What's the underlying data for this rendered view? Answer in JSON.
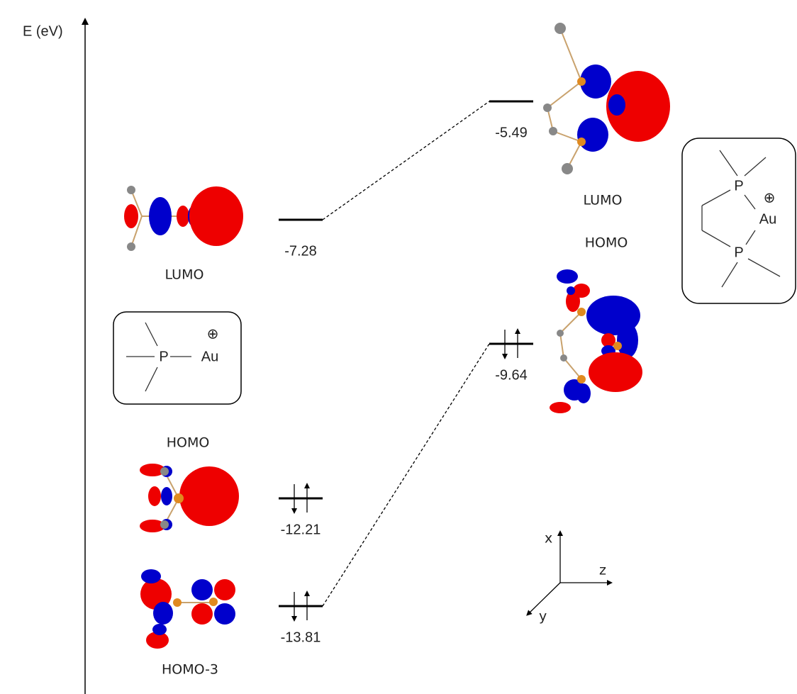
{
  "axis": {
    "label": "E (eV)"
  },
  "left_orbitals": [
    {
      "label": "LUMO",
      "energy": "-7.28"
    },
    {
      "label": "HOMO",
      "energy": "-12.21"
    },
    {
      "label": "HOMO-3",
      "energy": "-13.81"
    }
  ],
  "right_orbitals": [
    {
      "label": "LUMO",
      "energy": "-5.49"
    },
    {
      "label": "HOMO",
      "energy": "-9.64"
    }
  ],
  "left_structure": {
    "atoms": [
      "P",
      "Au"
    ],
    "charge": "⊕"
  },
  "right_structure": {
    "atoms": [
      "P",
      "Au",
      "P"
    ],
    "charge": "⊕"
  },
  "coordinate_axes": [
    "x",
    "y",
    "z"
  ]
}
